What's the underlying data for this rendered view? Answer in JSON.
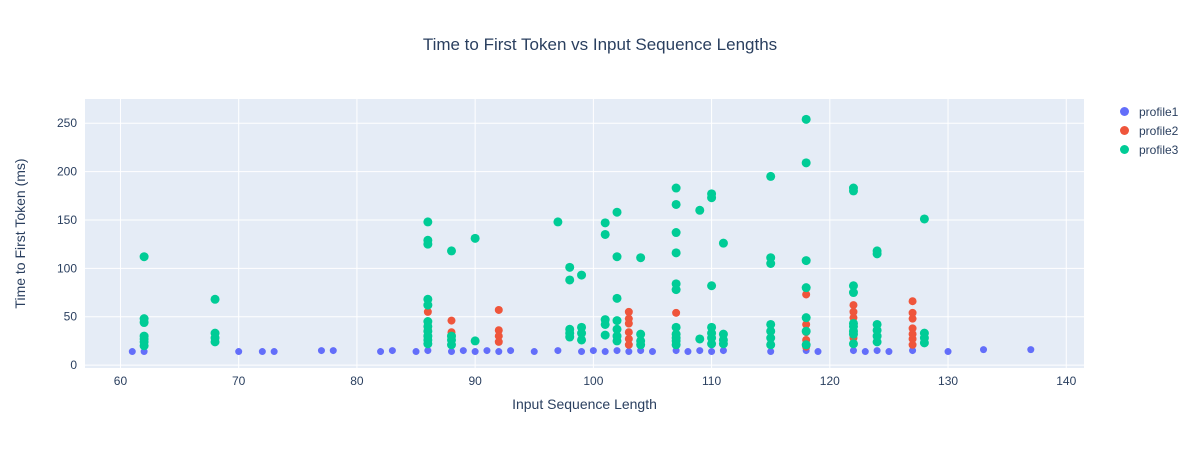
{
  "title": "Time to First Token vs Input Sequence Lengths",
  "colors": {
    "plot_background": "#E5ECF6",
    "grid": "#FFFFFF",
    "text": "#2A3F5F",
    "profile1": "#636EFA",
    "profile2": "#EF553B",
    "profile3": "#00CC96"
  },
  "legend": {
    "items": [
      "profile1",
      "profile2",
      "profile3"
    ]
  },
  "chart_data": {
    "type": "scatter",
    "title": "Time to First Token vs Input Sequence Lengths",
    "xlabel": "Input Sequence Length",
    "ylabel": "Time to First Token (ms)",
    "xlim": [
      57,
      141.5
    ],
    "ylim": [
      -3,
      275
    ],
    "xticks": [
      60,
      70,
      80,
      90,
      100,
      110,
      120,
      130,
      140
    ],
    "yticks": [
      0,
      50,
      100,
      150,
      200,
      250
    ],
    "grid": true,
    "legend_position": "right",
    "series": [
      {
        "name": "profile1",
        "color": "#636EFA",
        "marker_size": 3.5,
        "points": [
          [
            61,
            14
          ],
          [
            62,
            14
          ],
          [
            70,
            14
          ],
          [
            72,
            14
          ],
          [
            73,
            14
          ],
          [
            77,
            15
          ],
          [
            78,
            15
          ],
          [
            82,
            14
          ],
          [
            83,
            15
          ],
          [
            85,
            14
          ],
          [
            86,
            15
          ],
          [
            88,
            14
          ],
          [
            89,
            15
          ],
          [
            90,
            14
          ],
          [
            91,
            15
          ],
          [
            92,
            14
          ],
          [
            93,
            15
          ],
          [
            95,
            14
          ],
          [
            97,
            15
          ],
          [
            99,
            14
          ],
          [
            100,
            15
          ],
          [
            101,
            14
          ],
          [
            102,
            15
          ],
          [
            103,
            14
          ],
          [
            104,
            15
          ],
          [
            105,
            14
          ],
          [
            107,
            15
          ],
          [
            108,
            14
          ],
          [
            109,
            15
          ],
          [
            110,
            14
          ],
          [
            111,
            15
          ],
          [
            115,
            14
          ],
          [
            118,
            15
          ],
          [
            119,
            14
          ],
          [
            122,
            15
          ],
          [
            123,
            14
          ],
          [
            124,
            15
          ],
          [
            125,
            14
          ],
          [
            127,
            15
          ],
          [
            130,
            14
          ],
          [
            133,
            16
          ],
          [
            137,
            16
          ]
        ]
      },
      {
        "name": "profile2",
        "color": "#EF553B",
        "marker_size": 4,
        "points": [
          [
            86,
            55
          ],
          [
            86,
            44
          ],
          [
            86,
            38
          ],
          [
            86,
            30
          ],
          [
            86,
            25
          ],
          [
            88,
            46
          ],
          [
            88,
            34
          ],
          [
            88,
            28
          ],
          [
            92,
            57
          ],
          [
            92,
            36
          ],
          [
            92,
            30
          ],
          [
            92,
            24
          ],
          [
            103,
            55
          ],
          [
            103,
            48
          ],
          [
            103,
            43
          ],
          [
            103,
            34
          ],
          [
            103,
            27
          ],
          [
            103,
            21
          ],
          [
            107,
            54
          ],
          [
            107,
            22
          ],
          [
            118,
            73
          ],
          [
            118,
            42
          ],
          [
            118,
            34
          ],
          [
            118,
            26
          ],
          [
            118,
            19
          ],
          [
            122,
            62
          ],
          [
            122,
            55
          ],
          [
            122,
            49
          ],
          [
            122,
            28
          ],
          [
            127,
            66
          ],
          [
            127,
            54
          ],
          [
            127,
            48
          ],
          [
            127,
            38
          ],
          [
            127,
            32
          ],
          [
            127,
            27
          ],
          [
            127,
            21
          ]
        ]
      },
      {
        "name": "profile3",
        "color": "#00CC96",
        "marker_size": 4.5,
        "points": [
          [
            62,
            112
          ],
          [
            62,
            48
          ],
          [
            62,
            44
          ],
          [
            62,
            30
          ],
          [
            62,
            27
          ],
          [
            62,
            24
          ],
          [
            62,
            20
          ],
          [
            68,
            68
          ],
          [
            68,
            33
          ],
          [
            68,
            28
          ],
          [
            68,
            24
          ],
          [
            86,
            148
          ],
          [
            86,
            129
          ],
          [
            86,
            125
          ],
          [
            86,
            68
          ],
          [
            86,
            62
          ],
          [
            86,
            45
          ],
          [
            86,
            40
          ],
          [
            86,
            35
          ],
          [
            86,
            30
          ],
          [
            86,
            26
          ],
          [
            86,
            22
          ],
          [
            88,
            118
          ],
          [
            88,
            30
          ],
          [
            88,
            26
          ],
          [
            88,
            21
          ],
          [
            90,
            131
          ],
          [
            90,
            25
          ],
          [
            97,
            148
          ],
          [
            98,
            101
          ],
          [
            98,
            88
          ],
          [
            98,
            37
          ],
          [
            98,
            33
          ],
          [
            98,
            29
          ],
          [
            99,
            93
          ],
          [
            99,
            39
          ],
          [
            99,
            33
          ],
          [
            99,
            26
          ],
          [
            101,
            147
          ],
          [
            101,
            135
          ],
          [
            101,
            47
          ],
          [
            101,
            42
          ],
          [
            101,
            31
          ],
          [
            102,
            158
          ],
          [
            102,
            112
          ],
          [
            102,
            69
          ],
          [
            102,
            46
          ],
          [
            102,
            37
          ],
          [
            102,
            30
          ],
          [
            102,
            25
          ],
          [
            104,
            111
          ],
          [
            104,
            32
          ],
          [
            104,
            25
          ],
          [
            104,
            21
          ],
          [
            107,
            183
          ],
          [
            107,
            166
          ],
          [
            107,
            137
          ],
          [
            107,
            116
          ],
          [
            107,
            84
          ],
          [
            107,
            78
          ],
          [
            107,
            39
          ],
          [
            107,
            32
          ],
          [
            107,
            28
          ],
          [
            107,
            25
          ],
          [
            107,
            21
          ],
          [
            109,
            160
          ],
          [
            109,
            27
          ],
          [
            110,
            177
          ],
          [
            110,
            173
          ],
          [
            110,
            82
          ],
          [
            110,
            39
          ],
          [
            110,
            33
          ],
          [
            110,
            28
          ],
          [
            110,
            22
          ],
          [
            111,
            126
          ],
          [
            111,
            32
          ],
          [
            111,
            26
          ],
          [
            111,
            22
          ],
          [
            115,
            195
          ],
          [
            115,
            111
          ],
          [
            115,
            105
          ],
          [
            115,
            42
          ],
          [
            115,
            35
          ],
          [
            115,
            28
          ],
          [
            115,
            21
          ],
          [
            118,
            254
          ],
          [
            118,
            209
          ],
          [
            118,
            108
          ],
          [
            118,
            80
          ],
          [
            118,
            49
          ],
          [
            118,
            35
          ],
          [
            118,
            21
          ],
          [
            122,
            183
          ],
          [
            122,
            180
          ],
          [
            122,
            82
          ],
          [
            122,
            75
          ],
          [
            122,
            43
          ],
          [
            122,
            40
          ],
          [
            122,
            35
          ],
          [
            122,
            32
          ],
          [
            122,
            22
          ],
          [
            124,
            118
          ],
          [
            124,
            115
          ],
          [
            124,
            42
          ],
          [
            124,
            36
          ],
          [
            124,
            30
          ],
          [
            124,
            24
          ],
          [
            128,
            151
          ],
          [
            128,
            33
          ],
          [
            128,
            28
          ],
          [
            128,
            23
          ]
        ]
      }
    ]
  }
}
